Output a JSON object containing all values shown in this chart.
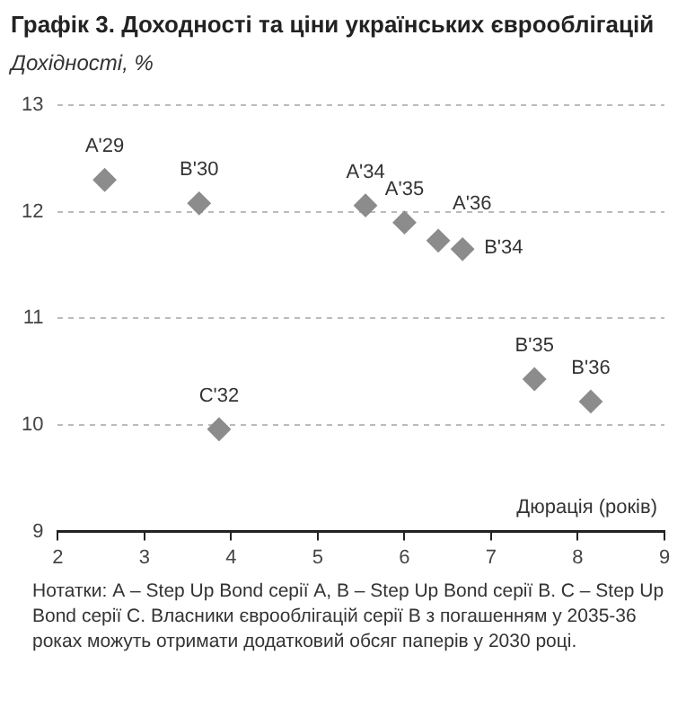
{
  "chart_data": {
    "type": "scatter",
    "title": "Графік 3. Доходності та ціни українських єврооблігацій",
    "ylabel": "Дохідності, %",
    "xlabel": "Дюрація (років)",
    "series": [
      {
        "color": "#8c8c8c",
        "x": [
          2.54,
          3.63,
          5.55,
          6.0,
          6.39,
          6.67,
          7.5,
          8.15,
          3.86
        ],
        "values": [
          12.3,
          12.08,
          12.06,
          11.9,
          11.73,
          11.65,
          10.43,
          10.22,
          9.96
        ]
      }
    ],
    "annotations": [
      {
        "text": "A'29",
        "x": 2.54,
        "y": 12.3
      },
      {
        "text": "B'30",
        "x": 3.63,
        "y": 12.08
      },
      {
        "text": "A'34",
        "x": 5.55,
        "y": 12.06
      },
      {
        "text": "A'35",
        "x": 6.0,
        "y": 11.9
      },
      {
        "text": "A'36",
        "x": 6.39,
        "y": 11.73
      },
      {
        "text": "B'34",
        "x": 6.67,
        "y": 11.65
      },
      {
        "text": "B'35",
        "x": 7.5,
        "y": 10.43
      },
      {
        "text": "B'36",
        "x": 8.15,
        "y": 10.22
      },
      {
        "text": "C'32",
        "x": 3.86,
        "y": 9.96
      },
      "Нотатки: А – Step Up Bond серії A, B – Step Up Bond серії B. C – Step Up Bond серії C. Власники єврооблігацій серії B з погашенням у 2035-36 роках можуть отримати додатковий обсяг паперів у 2030 році."
    ],
    "xlim": [
      2,
      9
    ],
    "xticks": [
      2,
      3,
      4,
      5,
      6,
      7,
      8,
      9
    ],
    "ylim": [
      9,
      13
    ],
    "yticks": [
      9,
      10,
      11,
      12,
      13
    ],
    "grid": "y",
    "marker": "diamond",
    "legend": false
  }
}
